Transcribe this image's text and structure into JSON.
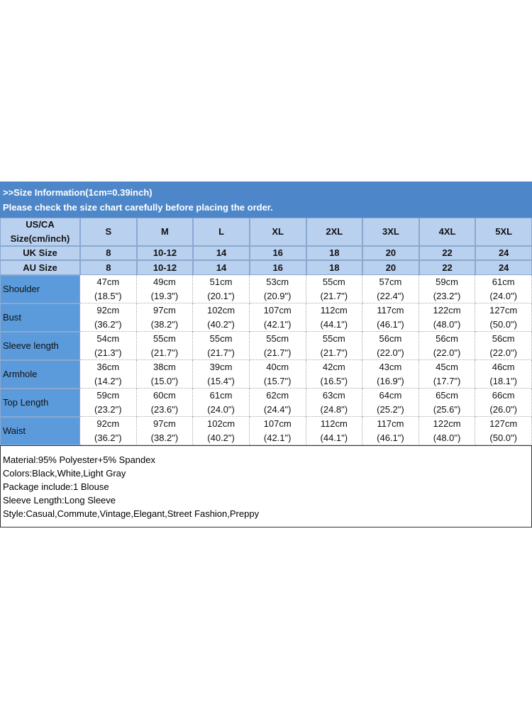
{
  "header": {
    "title": ">>Size Information(1cm=0.39inch)",
    "subtitle": "Please check the size chart carefully before placing the order."
  },
  "table": {
    "size_header": [
      "US/CA",
      "Size(cm/inch)"
    ],
    "sizes": [
      "S",
      "M",
      "L",
      "XL",
      "2XL",
      "3XL",
      "4XL",
      "5XL"
    ],
    "uk_label": "UK Size",
    "uk": [
      "8",
      "10-12",
      "14",
      "16",
      "18",
      "20",
      "22",
      "24"
    ],
    "au_label": "AU Size",
    "au": [
      "8",
      "10-12",
      "14",
      "16",
      "18",
      "20",
      "22",
      "24"
    ],
    "rows": [
      {
        "label": "Shoulder",
        "cm": [
          "47cm",
          "49cm",
          "51cm",
          "53cm",
          "55cm",
          "57cm",
          "59cm",
          "61cm"
        ],
        "inch": [
          "(18.5\")",
          "(19.3\")",
          "(20.1\")",
          "(20.9\")",
          "(21.7\")",
          "(22.4\")",
          "(23.2\")",
          "(24.0\")"
        ]
      },
      {
        "label": "Bust",
        "cm": [
          "92cm",
          "97cm",
          "102cm",
          "107cm",
          "112cm",
          "117cm",
          "122cm",
          "127cm"
        ],
        "inch": [
          "(36.2\")",
          "(38.2\")",
          "(40.2\")",
          "(42.1\")",
          "(44.1\")",
          "(46.1\")",
          "(48.0\")",
          "(50.0\")"
        ]
      },
      {
        "label": "Sleeve length",
        "cm": [
          "54cm",
          "55cm",
          "55cm",
          "55cm",
          "55cm",
          "56cm",
          "56cm",
          "56cm"
        ],
        "inch": [
          "(21.3\")",
          "(21.7\")",
          "(21.7\")",
          "(21.7\")",
          "(21.7\")",
          "(22.0\")",
          "(22.0\")",
          "(22.0\")"
        ]
      },
      {
        "label": "Armhole",
        "cm": [
          "36cm",
          "38cm",
          "39cm",
          "40cm",
          "42cm",
          "43cm",
          "45cm",
          "46cm"
        ],
        "inch": [
          "(14.2\")",
          "(15.0\")",
          "(15.4\")",
          "(15.7\")",
          "(16.5\")",
          "(16.9\")",
          "(17.7\")",
          "(18.1\")"
        ]
      },
      {
        "label": "Top Length",
        "cm": [
          "59cm",
          "60cm",
          "61cm",
          "62cm",
          "63cm",
          "64cm",
          "65cm",
          "66cm"
        ],
        "inch": [
          "(23.2\")",
          "(23.6\")",
          "(24.0\")",
          "(24.4\")",
          "(24.8\")",
          "(25.2\")",
          "(25.6\")",
          "(26.0\")"
        ]
      },
      {
        "label": "Waist",
        "cm": [
          "92cm",
          "97cm",
          "102cm",
          "107cm",
          "112cm",
          "117cm",
          "122cm",
          "127cm"
        ],
        "inch": [
          "(36.2\")",
          "(38.2\")",
          "(40.2\")",
          "(42.1\")",
          "(44.1\")",
          "(46.1\")",
          "(48.0\")",
          "(50.0\")"
        ]
      }
    ]
  },
  "notes": [
    "Material:95% Polyester+5% Spandex",
    "Colors:Black,White,Light Gray",
    "Package include:1 Blouse",
    "Sleeve Length:Long Sleeve",
    "Style:Casual,Commute,Vintage,Elegant,Street Fashion,Preppy"
  ]
}
